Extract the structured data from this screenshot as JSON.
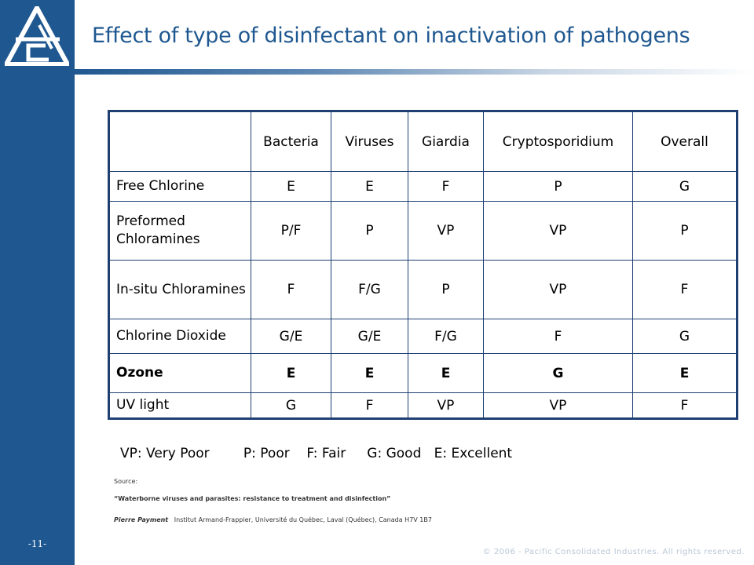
{
  "slide": {
    "title": "Effect of type of disinfectant on inactivation of pathogens",
    "page_number": "-11-",
    "logo_letters": "APCI"
  },
  "table": {
    "headers": [
      "",
      "Bacteria",
      "Viruses",
      "Giardia",
      "Cryptosporidium",
      "Overall"
    ],
    "rows": [
      {
        "label": "Free Chlorine",
        "cells": [
          "E",
          "E",
          "F",
          "P",
          "G"
        ],
        "bold": false
      },
      {
        "label": "Preformed Chloramines",
        "cells": [
          "P/F",
          "P",
          "VP",
          "VP",
          "P"
        ],
        "bold": false
      },
      {
        "label": "In-situ Chloramines",
        "cells": [
          "F",
          "F/G",
          "P",
          "VP",
          "F"
        ],
        "bold": false
      },
      {
        "label": "Chlorine Dioxide",
        "cells": [
          "G/E",
          "G/E",
          "F/G",
          "F",
          "G"
        ],
        "bold": false
      },
      {
        "label": "Ozone",
        "cells": [
          "E",
          "E",
          "E",
          "G",
          "E"
        ],
        "bold": true
      },
      {
        "label": "UV light",
        "cells": [
          "G",
          "F",
          "VP",
          "VP",
          "F"
        ],
        "bold": false
      }
    ]
  },
  "legend": "VP: Very Poor        P: Poor    F: Fair     G: Good   E: Excellent",
  "source": {
    "label": "Source:",
    "title": "“Waterborne viruses and parasites: resistance to treatment and disinfection”",
    "author": "Pierre Payment",
    "affiliation": "Institut Armand-Frappier, Université du Québec, Laval (Québec), Canada H7V 1B7"
  },
  "footer": {
    "copyright": "© 2006 - Pacific Consolidated Industries. All rights reserved."
  },
  "colors": {
    "brand": "#1f5890",
    "table_border": "#1f3f73"
  }
}
